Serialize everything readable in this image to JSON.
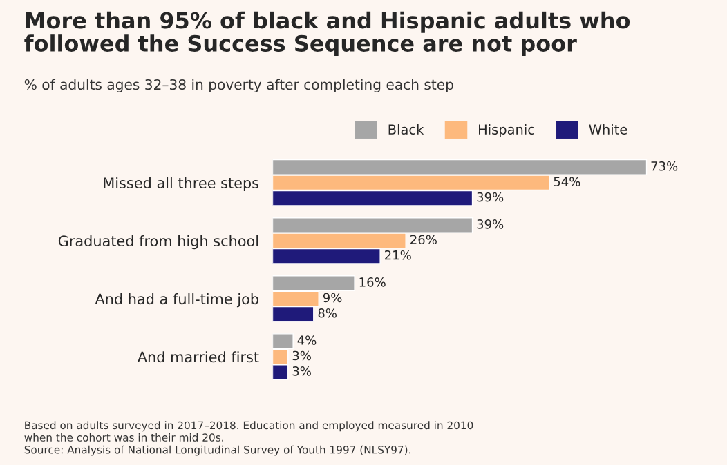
{
  "chart_data": {
    "type": "bar",
    "orientation": "horizontal",
    "title": "More than 95% of black and Hispanic adults who\nfollowed the Success Sequence are not poor",
    "subtitle": "% of adults ages 32–38 in poverty after completing each step",
    "categories": [
      "Missed all three steps",
      "Graduated from high school",
      "And had a full-time job",
      "And married first"
    ],
    "series": [
      {
        "name": "Black",
        "color": "#a6a6a6",
        "values": [
          73,
          39,
          16,
          4
        ],
        "value_labels": [
          "73%",
          "39%",
          "16%",
          "4%"
        ]
      },
      {
        "name": "Hispanic",
        "color": "#fdb97d",
        "values": [
          54,
          26,
          9,
          3
        ],
        "value_labels": [
          "54%",
          "26%",
          "9%",
          "3%"
        ]
      },
      {
        "name": "White",
        "color": "#1f1a7a",
        "values": [
          39,
          21,
          8,
          3
        ],
        "value_labels": [
          "39%",
          "21%",
          "8%",
          "3%"
        ]
      }
    ],
    "legend": "top right",
    "grid": false,
    "annotations": [
      "Based on adults surveyed in 2017–2018. Education and employed measured in 2010\nwhen the cohort was in their mid 20s.\nSource: Analysis of National Longitudinal Survey of Youth 1997 (NLSY97)."
    ]
  }
}
